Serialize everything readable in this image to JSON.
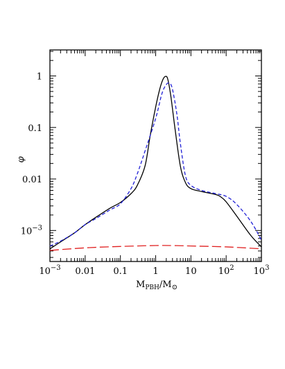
{
  "chart_data": {
    "type": "line",
    "title": "",
    "xscale": "log",
    "yscale": "log",
    "xlim": [
      0.001,
      1000
    ],
    "ylim": [
      0.00025,
      3.2
    ],
    "xlabel": {
      "main": "M",
      "sub1": "PBH",
      "sep": "/M",
      "sub2": "⊙"
    },
    "ylabel": "φ",
    "xticks": [
      {
        "value": 0.001,
        "base": "10",
        "exp": "−3"
      },
      {
        "value": 0.01,
        "text": "0.01"
      },
      {
        "value": 0.1,
        "text": "0.1"
      },
      {
        "value": 1,
        "text": "1"
      },
      {
        "value": 10,
        "text": "10"
      },
      {
        "value": 100,
        "base": "10",
        "exp": "2"
      },
      {
        "value": 1000,
        "base": "10",
        "exp": "3"
      }
    ],
    "yticks": [
      {
        "value": 0.001,
        "base": "10",
        "exp": "−3"
      },
      {
        "value": 0.01,
        "text": "0.01"
      },
      {
        "value": 0.1,
        "text": "0.1"
      },
      {
        "value": 1,
        "text": "1"
      }
    ],
    "grid": false,
    "legend": "none",
    "series": [
      {
        "style": "solid",
        "color": "#000000",
        "x": [
          0.001,
          0.002,
          0.005,
          0.01,
          0.02,
          0.05,
          0.1,
          0.2,
          0.3,
          0.5,
          0.7,
          1.0,
          1.3,
          1.6,
          1.9,
          2.2,
          2.7,
          3.5,
          5.0,
          7.0,
          10,
          20,
          50,
          70,
          100,
          200,
          500,
          1000
        ],
        "y": [
          0.00044,
          0.0006,
          0.0009,
          0.0013,
          0.0018,
          0.0027,
          0.0035,
          0.0052,
          0.0075,
          0.018,
          0.07,
          0.25,
          0.55,
          0.85,
          0.98,
          0.87,
          0.4,
          0.1,
          0.018,
          0.0085,
          0.0065,
          0.0057,
          0.005,
          0.0045,
          0.0036,
          0.0019,
          0.0008,
          0.00048
        ]
      },
      {
        "style": "dashed",
        "color": "#1f1fd6",
        "x": [
          0.001,
          0.002,
          0.005,
          0.01,
          0.02,
          0.05,
          0.1,
          0.2,
          0.3,
          0.5,
          1.0,
          1.5,
          2.0,
          2.5,
          3.0,
          4.0,
          5.0,
          7.0,
          10,
          20,
          50,
          100,
          200,
          500,
          1000
        ],
        "y": [
          0.0005,
          0.00062,
          0.0009,
          0.0013,
          0.0017,
          0.0025,
          0.0033,
          0.0065,
          0.0125,
          0.035,
          0.15,
          0.45,
          0.68,
          0.72,
          0.55,
          0.18,
          0.05,
          0.0115,
          0.0075,
          0.006,
          0.0052,
          0.0046,
          0.0032,
          0.0015,
          0.00065
        ]
      },
      {
        "style": "long-dashed",
        "color": "#e02020",
        "x": [
          0.001,
          0.01,
          0.1,
          1,
          3,
          10,
          100,
          1000
        ],
        "y": [
          0.00041,
          0.00046,
          0.00049,
          0.00051,
          0.00051,
          0.0005,
          0.00048,
          0.00044
        ]
      }
    ]
  }
}
